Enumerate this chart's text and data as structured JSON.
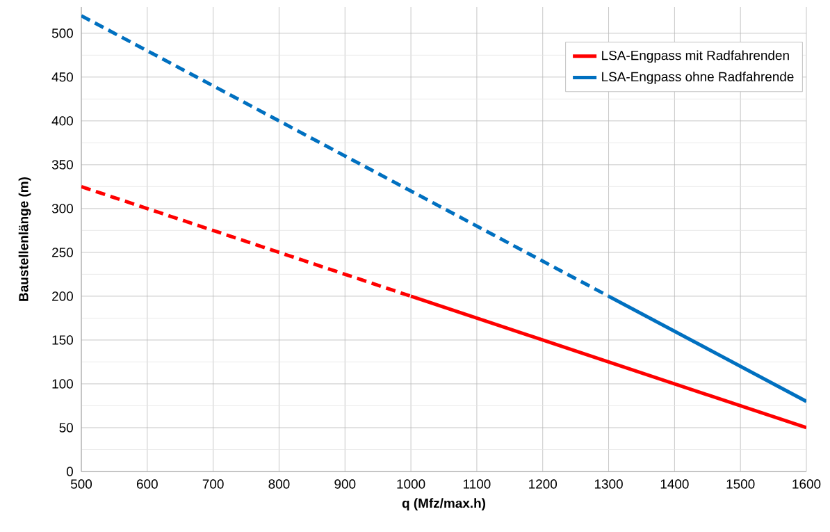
{
  "chart_data": {
    "type": "line",
    "xlabel": "q (Mfz/max.h)",
    "ylabel": "Baustellenlänge (m)",
    "xlim": [
      500,
      1600
    ],
    "ylim": [
      0,
      530
    ],
    "xticks": [
      500,
      600,
      700,
      800,
      900,
      1000,
      1100,
      1200,
      1300,
      1400,
      1500,
      1600
    ],
    "yticks": [
      0,
      50,
      100,
      150,
      200,
      250,
      300,
      350,
      400,
      450,
      500
    ],
    "grid": true,
    "legend": "top right",
    "series": [
      {
        "color": "#ff0000",
        "line_style": "dashed",
        "x": [
          500,
          1000
        ],
        "values": [
          325,
          200
        ]
      },
      {
        "name": "LSA-Engpass mit Radfahrenden",
        "color": "#ff0000",
        "line_style": "solid",
        "x": [
          1000,
          1600
        ],
        "values": [
          200,
          50
        ]
      },
      {
        "color": "#0070c0",
        "line_style": "dashed",
        "x": [
          500,
          1300
        ],
        "values": [
          520,
          200
        ]
      },
      {
        "name": "LSA-Engpass ohne Radfahrende",
        "color": "#0070c0",
        "line_style": "solid",
        "x": [
          1300,
          1600
        ],
        "values": [
          200,
          80
        ]
      }
    ]
  }
}
